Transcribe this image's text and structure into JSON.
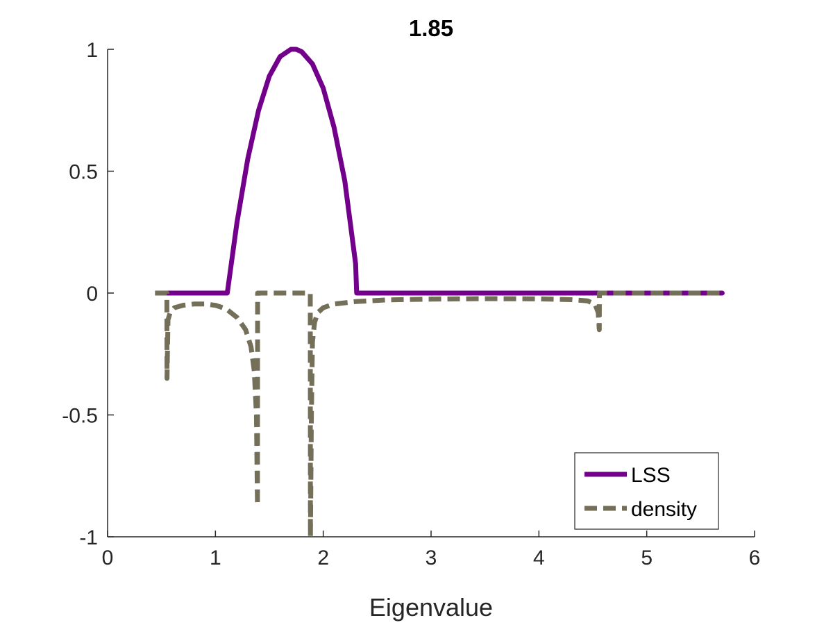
{
  "chart_data": {
    "type": "line",
    "title": "1.85",
    "xlabel": "Eigenvalue",
    "ylabel": "",
    "xlim": [
      0,
      6
    ],
    "ylim": [
      -1,
      1
    ],
    "xticks": [
      0,
      1,
      2,
      3,
      4,
      5,
      6
    ],
    "yticks": [
      -1,
      -0.5,
      0,
      0.5,
      1
    ],
    "xtick_labels": [
      "0",
      "1",
      "2",
      "3",
      "4",
      "5",
      "6"
    ],
    "ytick_labels": [
      "-1",
      "-0.5",
      "0",
      "0.5",
      "1"
    ],
    "grid": false,
    "legend_position": "bottom-right",
    "series": [
      {
        "name": "LSS",
        "color": "#72008a",
        "style": "solid",
        "x": [
          0.55,
          1.1,
          1.11,
          1.2,
          1.3,
          1.4,
          1.5,
          1.6,
          1.7,
          1.75,
          1.8,
          1.9,
          2.0,
          2.1,
          2.2,
          2.3,
          2.31,
          2.5,
          3.0,
          4.0,
          5.0,
          5.7
        ],
        "y": [
          0,
          0,
          0,
          0.29,
          0.55,
          0.75,
          0.89,
          0.97,
          1.0,
          1.0,
          0.99,
          0.94,
          0.84,
          0.68,
          0.46,
          0.12,
          0,
          0,
          0,
          0,
          0,
          0
        ]
      },
      {
        "name": "density",
        "color": "#746f59",
        "style": "dashed",
        "x": [
          0.44,
          0.55,
          0.551,
          0.56,
          0.58,
          0.62,
          0.7,
          0.8,
          0.9,
          1.0,
          1.1,
          1.2,
          1.28,
          1.33,
          1.36,
          1.38,
          1.39,
          1.391,
          1.4,
          1.5,
          1.6,
          1.7,
          1.8,
          1.88,
          1.881,
          1.89,
          1.9,
          1.92,
          1.95,
          2.0,
          2.1,
          2.3,
          2.6,
          3.0,
          3.5,
          4.0,
          4.3,
          4.45,
          4.52,
          4.55,
          4.56,
          4.561,
          4.6,
          5.0,
          5.7
        ],
        "y": [
          0,
          0,
          -0.35,
          -0.11,
          -0.08,
          -0.06,
          -0.05,
          -0.045,
          -0.045,
          -0.05,
          -0.065,
          -0.1,
          -0.15,
          -0.22,
          -0.32,
          -0.5,
          -0.87,
          0,
          0,
          0,
          0,
          0,
          0,
          0,
          -1.0,
          -0.5,
          -0.2,
          -0.12,
          -0.08,
          -0.06,
          -0.045,
          -0.035,
          -0.028,
          -0.025,
          -0.023,
          -0.024,
          -0.027,
          -0.032,
          -0.045,
          -0.08,
          -0.15,
          0,
          0,
          0,
          0
        ]
      }
    ]
  }
}
